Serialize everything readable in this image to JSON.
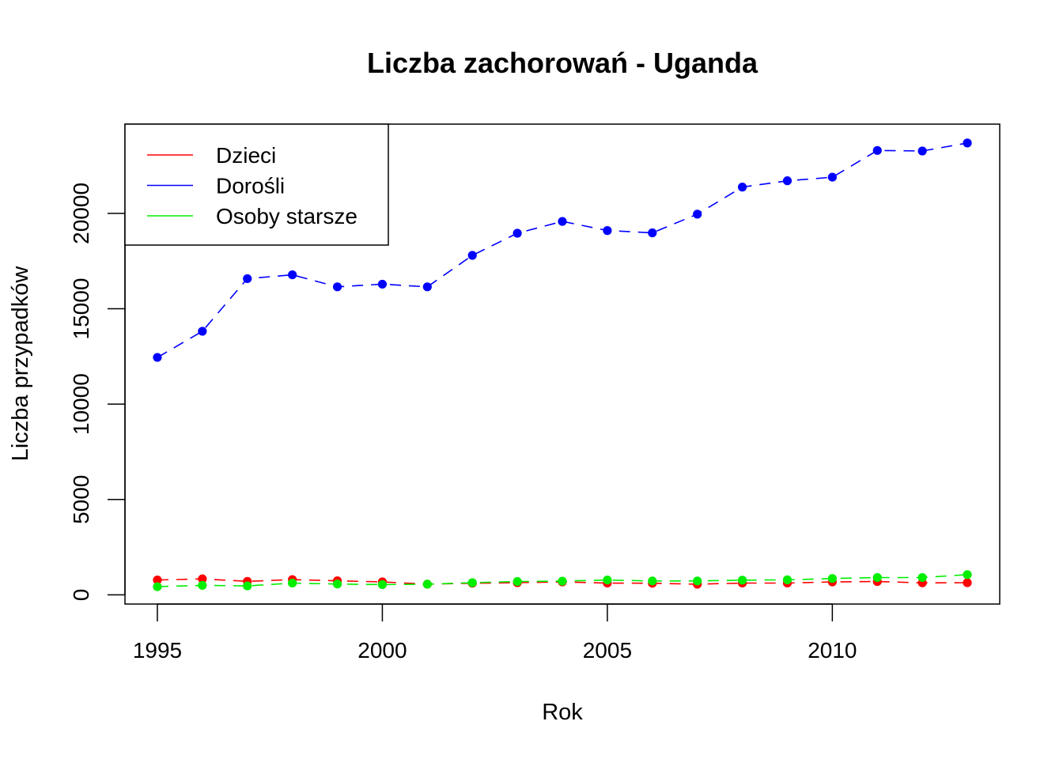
{
  "chart_data": {
    "type": "line",
    "title": "Liczba zachorowań -  Uganda",
    "xlabel": "Rok",
    "ylabel": "Liczba przypadków",
    "x": [
      1995,
      1996,
      1997,
      1998,
      1999,
      2000,
      2001,
      2002,
      2003,
      2004,
      2005,
      2006,
      2007,
      2008,
      2009,
      2010,
      2011,
      2012,
      2013
    ],
    "xlim": [
      1994.28,
      2013.72
    ],
    "ylim": [
      -480,
      24680
    ],
    "xticks": [
      1995,
      2000,
      2005,
      2010
    ],
    "yticks": [
      0,
      5000,
      10000,
      15000,
      20000
    ],
    "legend_position": "top-left",
    "grid": false,
    "series": [
      {
        "name": "Dzieci",
        "color": "#ff0000",
        "values": [
          780,
          840,
          710,
          800,
          740,
          680,
          560,
          610,
          640,
          680,
          620,
          610,
          560,
          620,
          620,
          680,
          700,
          630,
          640
        ]
      },
      {
        "name": "Dorośli",
        "color": "#0000ff",
        "values": [
          12450,
          13820,
          16580,
          16780,
          16150,
          16290,
          16150,
          17800,
          18960,
          19580,
          19100,
          18980,
          19960,
          21380,
          21710,
          21900,
          23300,
          23270,
          23690
        ]
      },
      {
        "name": "Osoby starsze",
        "color": "#00ee00",
        "values": [
          430,
          500,
          470,
          620,
          570,
          540,
          560,
          640,
          700,
          720,
          780,
          730,
          730,
          770,
          790,
          860,
          910,
          910,
          1060
        ]
      }
    ]
  }
}
